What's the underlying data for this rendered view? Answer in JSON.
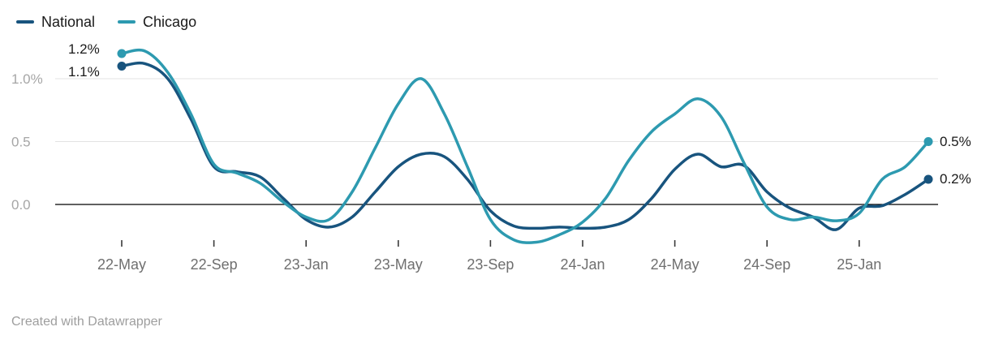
{
  "legend": {
    "items": [
      {
        "label": "National",
        "color": "#18547e"
      },
      {
        "label": "Chicago",
        "color": "#2d9ab0"
      }
    ]
  },
  "annotations": {
    "start_chicago": "1.2%",
    "start_national": "1.1%",
    "end_chicago": "0.5%",
    "end_national": "0.2%"
  },
  "footer": {
    "text": "Created with Datawrapper"
  },
  "chart_data": {
    "type": "line",
    "x": [
      "2022-05",
      "2022-06",
      "2022-07",
      "2022-08",
      "2022-09",
      "2022-10",
      "2022-11",
      "2022-12",
      "2023-01",
      "2023-02",
      "2023-03",
      "2023-04",
      "2023-05",
      "2023-06",
      "2023-07",
      "2023-08",
      "2023-09",
      "2023-10",
      "2023-11",
      "2023-12",
      "2024-01",
      "2024-02",
      "2024-03",
      "2024-04",
      "2024-05",
      "2024-06",
      "2024-07",
      "2024-08",
      "2024-09",
      "2024-10",
      "2024-11",
      "2024-12",
      "2025-01",
      "2025-02",
      "2025-03",
      "2025-04"
    ],
    "series": [
      {
        "name": "National",
        "color": "#18547e",
        "start_label": "1.1%",
        "end_label": "0.2%",
        "values": [
          1.1,
          1.12,
          1.0,
          0.68,
          0.3,
          0.26,
          0.22,
          0.05,
          -0.12,
          -0.18,
          -0.1,
          0.1,
          0.3,
          0.4,
          0.38,
          0.2,
          -0.05,
          -0.17,
          -0.19,
          -0.18,
          -0.19,
          -0.18,
          -0.12,
          0.05,
          0.28,
          0.4,
          0.3,
          0.31,
          0.1,
          -0.03,
          -0.1,
          -0.2,
          -0.03,
          -0.01,
          0.08,
          0.2
        ]
      },
      {
        "name": "Chicago",
        "color": "#2d9ab0",
        "start_label": "1.2%",
        "end_label": "0.5%",
        "values": [
          1.2,
          1.22,
          1.05,
          0.72,
          0.32,
          0.25,
          0.17,
          0.02,
          -0.1,
          -0.12,
          0.1,
          0.45,
          0.8,
          1.0,
          0.72,
          0.3,
          -0.12,
          -0.28,
          -0.3,
          -0.24,
          -0.14,
          0.05,
          0.35,
          0.58,
          0.72,
          0.84,
          0.7,
          0.33,
          -0.02,
          -0.12,
          -0.1,
          -0.13,
          -0.07,
          0.2,
          0.3,
          0.5
        ]
      }
    ],
    "x_ticks": [
      {
        "index": 0,
        "label": "22-May"
      },
      {
        "index": 4,
        "label": "22-Sep"
      },
      {
        "index": 8,
        "label": "23-Jan"
      },
      {
        "index": 12,
        "label": "23-May"
      },
      {
        "index": 16,
        "label": "23-Sep"
      },
      {
        "index": 20,
        "label": "24-Jan"
      },
      {
        "index": 24,
        "label": "24-May"
      },
      {
        "index": 28,
        "label": "24-Sep"
      },
      {
        "index": 32,
        "label": "25-Jan"
      }
    ],
    "y_ticks": [
      {
        "value": 1.0,
        "label": "1.0%"
      },
      {
        "value": 0.5,
        "label": "0.5"
      },
      {
        "value": 0.0,
        "label": "0.0"
      }
    ],
    "ylim": [
      -0.35,
      1.3
    ],
    "grid": "horizontal",
    "legend_position": "top-left",
    "unit": "%"
  }
}
